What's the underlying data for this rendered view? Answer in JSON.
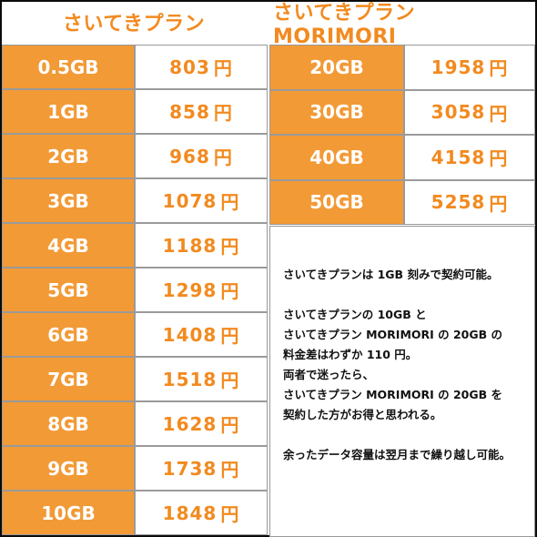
{
  "plans": {
    "left_title": "さいてきプラン",
    "right_title": "さいてきプラン MORIMORI",
    "left_rows": [
      {
        "capacity": "0.5GB",
        "price": "803",
        "unit": "円"
      },
      {
        "capacity": "1GB",
        "price": "858",
        "unit": "円"
      },
      {
        "capacity": "2GB",
        "price": "968",
        "unit": "円"
      },
      {
        "capacity": "3GB",
        "price": "1078",
        "unit": "円"
      },
      {
        "capacity": "4GB",
        "price": "1188",
        "unit": "円"
      },
      {
        "capacity": "5GB",
        "price": "1298",
        "unit": "円"
      },
      {
        "capacity": "6GB",
        "price": "1408",
        "unit": "円"
      },
      {
        "capacity": "7GB",
        "price": "1518",
        "unit": "円"
      },
      {
        "capacity": "8GB",
        "price": "1628",
        "unit": "円"
      },
      {
        "capacity": "9GB",
        "price": "1738",
        "unit": "円"
      },
      {
        "capacity": "10GB",
        "price": "1848",
        "unit": "円"
      }
    ],
    "right_rows": [
      {
        "capacity": "20GB",
        "price": "1958",
        "unit": "円"
      },
      {
        "capacity": "30GB",
        "price": "3058",
        "unit": "円"
      },
      {
        "capacity": "40GB",
        "price": "4158",
        "unit": "円"
      },
      {
        "capacity": "50GB",
        "price": "5258",
        "unit": "円"
      }
    ]
  },
  "note": {
    "line1": "さいてきプランは 1GB 刻みで契約可能。",
    "line2": "さいてきプランの 10GB と",
    "line3": "さいてきプラン MORIMORI の 20GB の",
    "line4": "料金差はわずか 110 円。",
    "line5": "両者で迷ったら、",
    "line6": "さいてきプラン MORIMORI の 20GB を",
    "line7": "契約した方がお得と思われる。",
    "line8": "余ったデータ容量は翌月まで繰り越し可能。"
  },
  "colors": {
    "accent": "#f29a36",
    "accent_text": "#f28a1f",
    "border": "#0b0b0b"
  }
}
